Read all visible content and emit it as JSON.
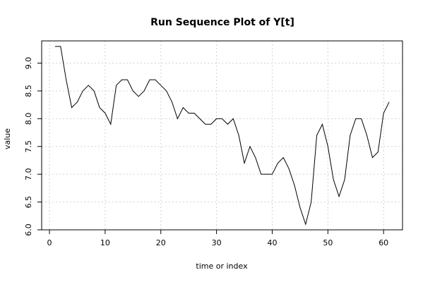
{
  "chart_data": {
    "type": "line",
    "title": "Run Sequence Plot of Y[t]",
    "xlabel": "time or index",
    "ylabel": "value",
    "xlim": [
      -1.4,
      63.4
    ],
    "ylim": [
      6.0,
      9.4
    ],
    "xticks": [
      0,
      10,
      20,
      30,
      40,
      50,
      60
    ],
    "yticks": [
      6.0,
      6.5,
      7.0,
      7.5,
      8.0,
      8.5,
      9.0
    ],
    "ytick_labels": [
      "6.0",
      "6.5",
      "7.0",
      "7.5",
      "8.0",
      "8.5",
      "9.0"
    ],
    "grid": true,
    "series": [
      {
        "x": [
          1,
          2,
          3,
          4,
          5,
          6,
          7,
          8,
          9,
          10,
          11,
          12,
          13,
          14,
          15,
          16,
          17,
          18,
          19,
          20,
          21,
          22,
          23,
          24,
          25,
          26,
          27,
          28,
          29,
          30,
          31,
          32,
          33,
          34,
          35,
          36,
          37,
          38,
          39,
          40,
          41,
          42,
          43,
          44,
          45,
          46,
          47,
          48,
          49,
          50,
          51,
          52,
          53,
          54,
          55,
          56,
          57,
          58,
          59,
          60,
          61
        ],
        "values": [
          9.3,
          9.3,
          8.7,
          8.2,
          8.3,
          8.5,
          8.6,
          8.5,
          8.2,
          8.1,
          7.9,
          8.6,
          8.7,
          8.7,
          8.5,
          8.4,
          8.5,
          8.7,
          8.7,
          8.6,
          8.5,
          8.3,
          8.0,
          8.2,
          8.1,
          8.1,
          8.0,
          7.9,
          7.9,
          8.0,
          8.0,
          7.9,
          8.0,
          7.7,
          7.2,
          7.5,
          7.3,
          7.0,
          7.0,
          7.0,
          7.2,
          7.3,
          7.1,
          6.8,
          6.4,
          6.1,
          6.5,
          7.7,
          7.9,
          7.5,
          6.9,
          6.6,
          6.9,
          7.7,
          8.0,
          8.0,
          7.7,
          7.3,
          7.4,
          8.1,
          8.3
        ],
        "color": "#000000"
      }
    ]
  }
}
